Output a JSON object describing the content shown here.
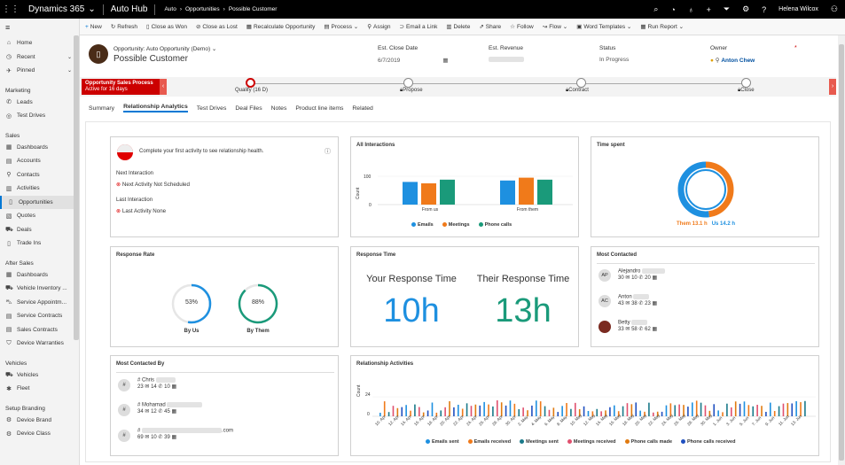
{
  "topbar": {
    "app": "Dynamics 365",
    "module": "Auto Hub",
    "crumb1": "Auto",
    "crumb2": "Opportunities",
    "crumb3": "Possible Customer",
    "user": "Helena Wilcox"
  },
  "commands": [
    "New",
    "Refresh",
    "Close as Won",
    "Close as Lost",
    "Recalculate Opportunity",
    "Process",
    "Assign",
    "Email a Link",
    "Delete",
    "Share",
    "Follow",
    "Flow",
    "Word Templates",
    "Run Report"
  ],
  "nav": {
    "top": [
      {
        "label": "Home",
        "icon": "home-icon"
      },
      {
        "label": "Recent",
        "icon": "clock-icon"
      },
      {
        "label": "Pinned",
        "icon": "pin-icon"
      }
    ],
    "groups": [
      {
        "name": "Marketing",
        "items": [
          "Leads",
          "Test Drives"
        ]
      },
      {
        "name": "Sales",
        "items": [
          "Dashboards",
          "Accounts",
          "Contacts",
          "Activities",
          "Opportunities",
          "Quotes",
          "Deals",
          "Trade Ins"
        ]
      },
      {
        "name": "After Sales",
        "items": [
          "Dashboards",
          "Vehicle Inventory ...",
          "Service Appointm...",
          "Service Contracts",
          "Sales Contracts",
          "Device Warranties"
        ]
      },
      {
        "name": "Vehicles",
        "items": [
          "Vehicles",
          "Fleet"
        ]
      },
      {
        "name": "Setup Branding",
        "items": [
          "Device Brand",
          "Device Class"
        ]
      }
    ]
  },
  "header": {
    "subtitle": "Opportunity: Auto Opportunity (Demo)",
    "title": "Possible Customer",
    "close_label": "Est. Close Date",
    "close_value": "6/7/2019",
    "revenue_label": "Est. Revenue",
    "status_label": "Status",
    "status_value": "In Progress",
    "owner_label": "Owner",
    "owner_value": "Anton Chew"
  },
  "bpf": {
    "process": "Opportunity Sales Process",
    "active": "Active for 16 days",
    "stages": [
      "Qualify  (16 D)",
      "Propose",
      "Contract",
      "Close"
    ]
  },
  "tabs": [
    "Summary",
    "Relationship Analytics",
    "Test Drives",
    "Deal Files",
    "Notes",
    "Product line items",
    "Related"
  ],
  "health": {
    "message": "Complete your first activity to see relationship health.",
    "next_label": "Next Interaction",
    "next_value": "Next Activity Not Scheduled",
    "last_label": "Last Interaction",
    "last_value": "Last Activity None"
  },
  "all_interactions": {
    "title": "All Interactions",
    "ylabel": "Count",
    "legend": [
      "Emails",
      "Meetings",
      "Phone calls"
    ],
    "groups": [
      "From us",
      "From them"
    ]
  },
  "time_spent": {
    "title": "Time spent",
    "them": "Them 13.1 h",
    "us": "Us 14.2 h"
  },
  "response_rate": {
    "title": "Response Rate",
    "us_value": "53%",
    "us_label": "By Us",
    "them_value": "88%",
    "them_label": "By Them"
  },
  "response_time": {
    "title": "Response Time",
    "your_label": "Your Response Time",
    "your_value": "10h",
    "their_label": "Their Response Time",
    "their_value": "13h"
  },
  "most_contacted": {
    "title": "Most Contacted",
    "people": [
      {
        "initials": "AP",
        "name": "Alejandro",
        "e": "30",
        "p": "10",
        "m": "20"
      },
      {
        "initials": "AC",
        "name": "Anton",
        "e": "43",
        "p": "38",
        "m": "23"
      },
      {
        "initials": "",
        "name": "Betty",
        "e": "33",
        "p": "58",
        "m": "62"
      }
    ]
  },
  "most_contacted_by": {
    "title": "Most Contacted By",
    "people": [
      {
        "name": "# Chris",
        "e": "23",
        "p": "14",
        "m": "10"
      },
      {
        "name": "# Mohamad",
        "e": "34",
        "p": "12",
        "m": "45"
      },
      {
        "name": "#",
        "suffix": ".com",
        "e": "69",
        "p": "10",
        "m": "39"
      }
    ]
  },
  "relationship_activities": {
    "title": "Relationship Activities",
    "ylabel": "Count",
    "ytick": "24",
    "ytick0": "0",
    "dates": [
      "10. Apr",
      "12. Apr",
      "14. Apr",
      "16. Apr",
      "18. Apr",
      "20. Apr",
      "22. Apr",
      "24. Apr",
      "26. Apr",
      "28. Apr",
      "30. Apr",
      "2. May",
      "4. May",
      "6. May",
      "8. May",
      "10. May",
      "12. May",
      "14. May",
      "16. May",
      "18. May",
      "20. May",
      "22. May",
      "24. May",
      "26. May",
      "28. May",
      "30. May",
      "1. Jun",
      "3. Jun",
      "5. Jun",
      "7. Jun",
      "9. Jun",
      "11. Jun",
      "13. Jun"
    ],
    "legend": [
      "Emails sent",
      "Emails received",
      "Meetings sent",
      "Meetings received",
      "Phone calls made",
      "Phone calls received"
    ]
  },
  "chart_data": [
    {
      "type": "bar",
      "title": "All Interactions",
      "categories": [
        "From us",
        "From them"
      ],
      "ylabel": "Count",
      "yticks": [
        0,
        100
      ],
      "series": [
        {
          "name": "Emails",
          "values": [
            80,
            85
          ]
        },
        {
          "name": "Meetings",
          "values": [
            75,
            95
          ]
        },
        {
          "name": "Phone calls",
          "values": [
            88,
            88
          ]
        }
      ],
      "colors": [
        "#1e90e0",
        "#f07a1a",
        "#1a9a7a"
      ],
      "legend": "bottom"
    },
    {
      "type": "pie",
      "title": "Time spent",
      "categories": [
        "Them",
        "Us"
      ],
      "values": [
        13.1,
        14.2
      ],
      "colors": [
        "#f07a1a",
        "#1e90e0"
      ]
    },
    {
      "type": "pie",
      "title": "Response Rate",
      "categories": [
        "By Us",
        "By Them"
      ],
      "values": [
        53,
        88
      ],
      "colors": [
        "#1e90e0",
        "#1a9a7a"
      ]
    }
  ],
  "colors": {
    "accent": "#0078d4",
    "blue": "#1e90e0",
    "orange": "#f07a1a",
    "green": "#1a9a7a",
    "red": "#c00000",
    "teal": "#1a7a8a",
    "pink": "#e0506e",
    "navy": "#2050c0"
  }
}
